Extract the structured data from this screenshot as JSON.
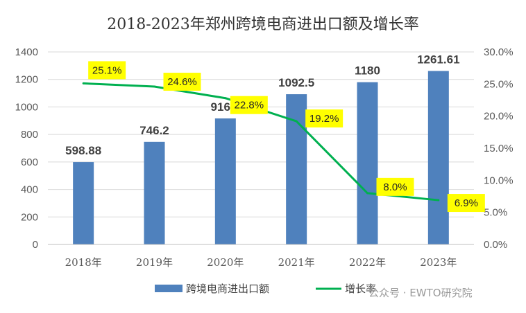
{
  "chart_data": {
    "type": "bar+line",
    "title": "2018-2023年郑州跨境电商进出口额及增长率",
    "categories": [
      "2018年",
      "2019年",
      "2020年",
      "2021年",
      "2022年",
      "2023年"
    ],
    "series": [
      {
        "name": "跨境电商进出口额",
        "type": "bar",
        "axis": "left",
        "color": "#4F81BD",
        "values": [
          598.88,
          746.2,
          916.4,
          1092.5,
          1180,
          1261.61
        ],
        "labels": [
          "598.88",
          "746.2",
          "916.4",
          "1092.5",
          "1180",
          "1261.61"
        ]
      },
      {
        "name": "增长率",
        "type": "line",
        "axis": "right",
        "color": "#00B050",
        "values": [
          25.1,
          24.6,
          22.8,
          19.2,
          8.0,
          6.9
        ],
        "labels": [
          "25.1%",
          "24.6%",
          "22.8%",
          "19.2%",
          "8.0%",
          "6.9%"
        ],
        "label_background": "#FFFF00"
      }
    ],
    "y_left": {
      "range": [
        0,
        1400
      ],
      "ticks": [
        "0",
        "200",
        "400",
        "600",
        "800",
        "1000",
        "1200",
        "1400"
      ]
    },
    "y_right": {
      "range": [
        0,
        30
      ],
      "ticks": [
        "0.0%",
        "5.0%",
        "10.0%",
        "15.0%",
        "20.0%",
        "25.0%",
        "30.0%"
      ]
    },
    "grid": true,
    "legend_position": "bottom"
  },
  "watermark": "公众号 · EWTO研究院"
}
